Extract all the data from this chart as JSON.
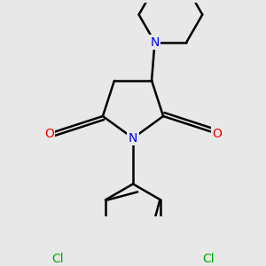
{
  "background_color": "#e8e8e8",
  "bond_color": "#000000",
  "bond_width": 1.8,
  "atom_colors": {
    "N_pyrrolidine": "#0000ee",
    "N_piperidine": "#0000ee",
    "O": "#ee0000",
    "Cl": "#00aa00"
  },
  "font_size_N": 10,
  "font_size_O": 10,
  "font_size_Cl": 10
}
